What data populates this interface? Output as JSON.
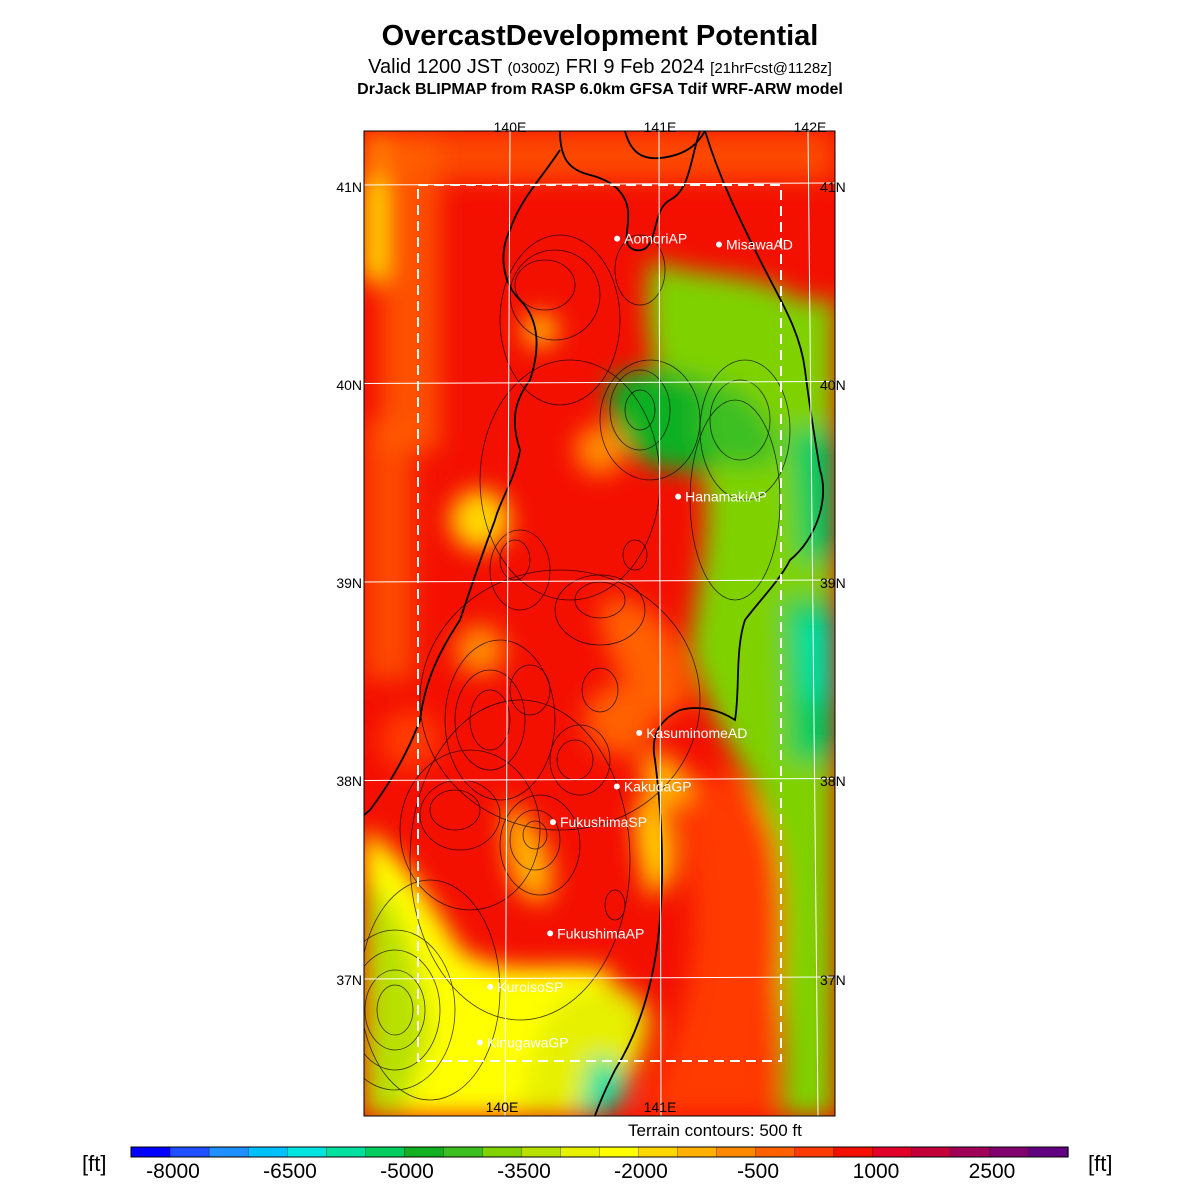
{
  "header": {
    "title": "OvercastDevelopment Potential",
    "valid_prefix": "Valid 1200 JST",
    "utc": "(0300Z)",
    "date": "FRI 9 Feb 2024",
    "forecast": "[21hrFcst@1128z]",
    "model": "DrJack BLIPMAP from RASP 6.0km GFSA Tdif WRF-ARW model"
  },
  "map": {
    "lon_labels_top": [
      "140E",
      "141E",
      "142E"
    ],
    "lon_labels_bottom": [
      "140E",
      "141E"
    ],
    "lat_labels_left": [
      "41N",
      "40N",
      "39N",
      "38N",
      "37N"
    ],
    "lat_labels_right": [
      "41N",
      "40N",
      "39N",
      "38N",
      "37N"
    ],
    "stations": [
      {
        "name": "AomoriAP",
        "lat": 40.73,
        "lon": 140.69
      },
      {
        "name": "MisawaAD",
        "lat": 40.7,
        "lon": 141.37
      },
      {
        "name": "HanamakiAP",
        "lat": 39.43,
        "lon": 141.14
      },
      {
        "name": "KasuminomeAD",
        "lat": 38.24,
        "lon": 140.92
      },
      {
        "name": "KakudaGP",
        "lat": 37.97,
        "lon": 140.78
      },
      {
        "name": "FukushimaSP",
        "lat": 37.79,
        "lon": 140.36
      },
      {
        "name": "FukushimaAP",
        "lat": 37.23,
        "lon": 140.36
      },
      {
        "name": "KuroisoSP",
        "lat": 36.96,
        "lon": 139.97
      },
      {
        "name": "KinugawaGP",
        "lat": 36.68,
        "lon": 139.91
      }
    ]
  },
  "footer": {
    "terrain_note": "Terrain contours: 500 ft",
    "unit_left": "[ft]",
    "unit_right": "[ft]"
  },
  "colorbar": {
    "labels": [
      "-8000",
      "-6500",
      "-5000",
      "-3500",
      "-2000",
      "-500",
      "1000",
      "2500"
    ],
    "colors": [
      "#0000ff",
      "#1f4fff",
      "#1e90ff",
      "#00c0ff",
      "#00e5e0",
      "#00e0a0",
      "#00cc60",
      "#11b020",
      "#3cc020",
      "#7fd200",
      "#b8e000",
      "#e6f000",
      "#ffff00",
      "#ffd700",
      "#ffb000",
      "#ff8a00",
      "#ff6000",
      "#ff3a00",
      "#f41000",
      "#e0002a",
      "#c4003c",
      "#a0005a",
      "#80006e",
      "#600080"
    ]
  }
}
